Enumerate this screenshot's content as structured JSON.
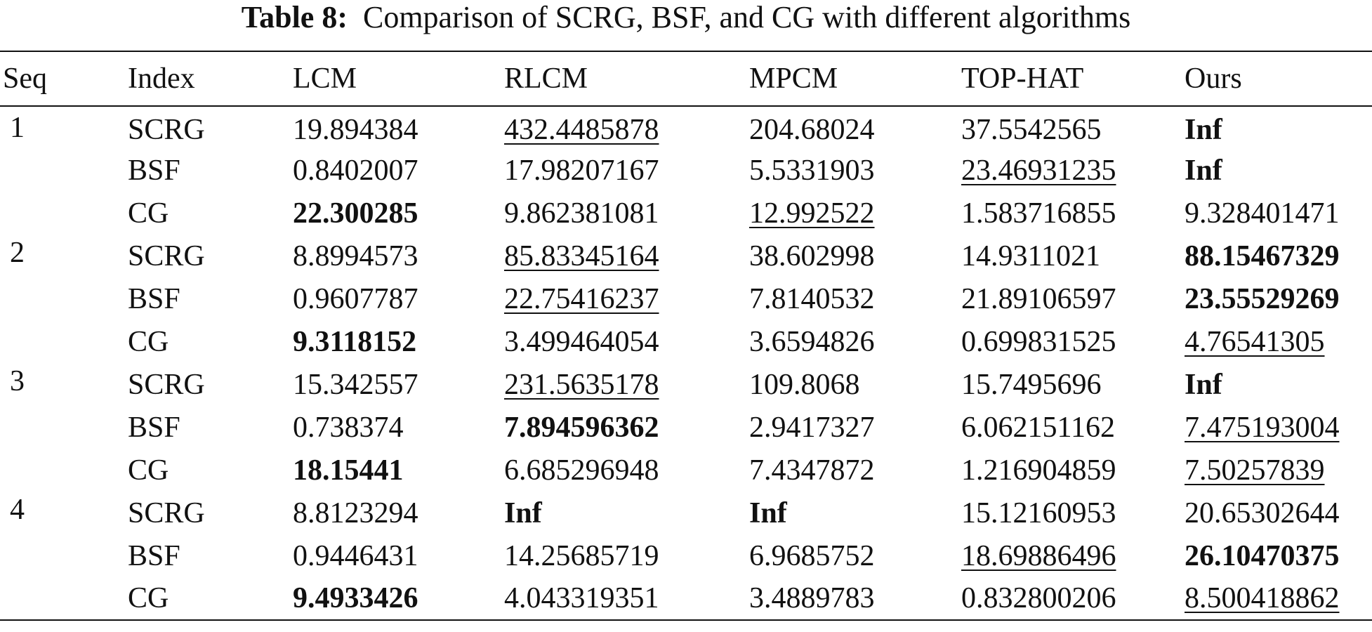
{
  "caption": {
    "label": "Table 8:",
    "text": "Comparison of SCRG, BSF, and CG with different algorithms"
  },
  "columns": [
    "Seq",
    "Index",
    "LCM",
    "RLCM",
    "MPCM",
    "TOP-HAT",
    "Ours"
  ],
  "groups": [
    {
      "seq": "1",
      "rows": [
        {
          "index": "SCRG",
          "values": [
            {
              "v": "19.894384",
              "s": ""
            },
            {
              "v": "432.4485878",
              "s": "under"
            },
            {
              "v": "204.68024",
              "s": ""
            },
            {
              "v": "37.5542565",
              "s": ""
            },
            {
              "v": "Inf",
              "s": "bold"
            }
          ]
        },
        {
          "index": "BSF",
          "values": [
            {
              "v": "0.8402007",
              "s": ""
            },
            {
              "v": "17.98207167",
              "s": ""
            },
            {
              "v": "5.5331903",
              "s": ""
            },
            {
              "v": "23.46931235",
              "s": "under"
            },
            {
              "v": "Inf",
              "s": "bold"
            }
          ]
        },
        {
          "index": "CG",
          "values": [
            {
              "v": "22.300285",
              "s": "bold"
            },
            {
              "v": "9.862381081",
              "s": ""
            },
            {
              "v": "12.992522",
              "s": "under"
            },
            {
              "v": "1.583716855",
              "s": ""
            },
            {
              "v": "9.328401471",
              "s": ""
            }
          ]
        }
      ]
    },
    {
      "seq": "2",
      "rows": [
        {
          "index": "SCRG",
          "values": [
            {
              "v": "8.8994573",
              "s": ""
            },
            {
              "v": "85.83345164",
              "s": "under"
            },
            {
              "v": "38.602998",
              "s": ""
            },
            {
              "v": "14.9311021",
              "s": ""
            },
            {
              "v": "88.15467329",
              "s": "bold"
            }
          ]
        },
        {
          "index": "BSF",
          "values": [
            {
              "v": "0.9607787",
              "s": ""
            },
            {
              "v": "22.75416237",
              "s": "under"
            },
            {
              "v": "7.8140532",
              "s": ""
            },
            {
              "v": "21.89106597",
              "s": ""
            },
            {
              "v": "23.55529269",
              "s": "bold"
            }
          ]
        },
        {
          "index": "CG",
          "values": [
            {
              "v": "9.3118152",
              "s": "bold"
            },
            {
              "v": "3.499464054",
              "s": ""
            },
            {
              "v": "3.6594826",
              "s": ""
            },
            {
              "v": "0.699831525",
              "s": ""
            },
            {
              "v": "4.76541305",
              "s": "under"
            }
          ]
        }
      ]
    },
    {
      "seq": "3",
      "rows": [
        {
          "index": "SCRG",
          "values": [
            {
              "v": "15.342557",
              "s": ""
            },
            {
              "v": "231.5635178",
              "s": "under"
            },
            {
              "v": "109.8068",
              "s": ""
            },
            {
              "v": "15.7495696",
              "s": ""
            },
            {
              "v": "Inf",
              "s": "bold"
            }
          ]
        },
        {
          "index": "BSF",
          "values": [
            {
              "v": "0.738374",
              "s": ""
            },
            {
              "v": "7.894596362",
              "s": "bold"
            },
            {
              "v": "2.9417327",
              "s": ""
            },
            {
              "v": "6.062151162",
              "s": ""
            },
            {
              "v": "7.475193004",
              "s": "under"
            }
          ]
        },
        {
          "index": "CG",
          "values": [
            {
              "v": "18.15441",
              "s": "bold"
            },
            {
              "v": "6.685296948",
              "s": ""
            },
            {
              "v": "7.4347872",
              "s": ""
            },
            {
              "v": "1.216904859",
              "s": ""
            },
            {
              "v": "7.50257839",
              "s": "under"
            }
          ]
        }
      ]
    },
    {
      "seq": "4",
      "rows": [
        {
          "index": "SCRG",
          "values": [
            {
              "v": "8.8123294",
              "s": ""
            },
            {
              "v": "Inf",
              "s": "bold"
            },
            {
              "v": "Inf",
              "s": "bold"
            },
            {
              "v": "15.12160953",
              "s": ""
            },
            {
              "v": "20.65302644",
              "s": ""
            }
          ]
        },
        {
          "index": "BSF",
          "values": [
            {
              "v": "0.9446431",
              "s": ""
            },
            {
              "v": "14.25685719",
              "s": ""
            },
            {
              "v": "6.9685752",
              "s": ""
            },
            {
              "v": "18.69886496",
              "s": "under"
            },
            {
              "v": "26.10470375",
              "s": "bold"
            }
          ]
        },
        {
          "index": "CG",
          "values": [
            {
              "v": "9.4933426",
              "s": "bold"
            },
            {
              "v": "4.043319351",
              "s": ""
            },
            {
              "v": "3.4889783",
              "s": ""
            },
            {
              "v": "0.832800206",
              "s": ""
            },
            {
              "v": "8.500418862",
              "s": "under"
            }
          ]
        }
      ]
    }
  ]
}
